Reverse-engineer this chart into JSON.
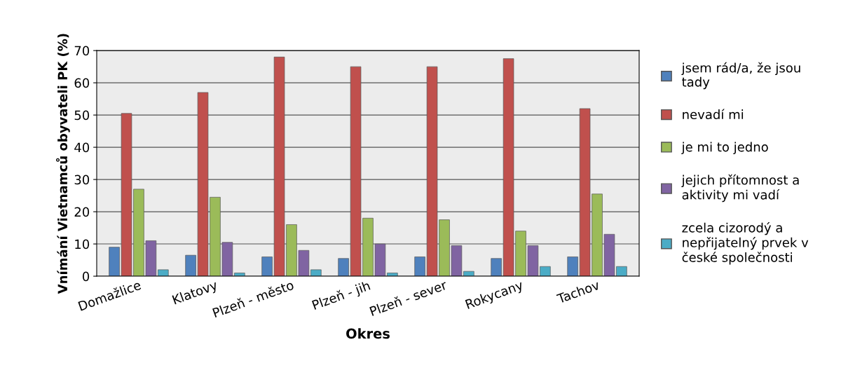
{
  "chart_data": {
    "type": "bar",
    "xlabel": "Okres",
    "ylabel": "Vnímání Vietnamců obyvateli PK (%)",
    "categories": [
      "Domažlice",
      "Klatovy",
      "Plzeň - město",
      "Plzeň - jih",
      "Plzeň - sever",
      "Rokycany",
      "Tachov"
    ],
    "series": [
      {
        "name": "jsem rád/a, že jsou tady",
        "color": "#4f81bd",
        "values": [
          9,
          6.5,
          6,
          5.5,
          6,
          5.5,
          6
        ]
      },
      {
        "name": "nevadí mi",
        "color": "#c0504d",
        "values": [
          50.5,
          57,
          68,
          65,
          65,
          67.5,
          52
        ]
      },
      {
        "name": "je mi to jedno",
        "color": "#9bbb59",
        "values": [
          27,
          24.5,
          16,
          18,
          17.5,
          14,
          25.5
        ]
      },
      {
        "name": "jejich přítomnost a aktivity mi vadí",
        "color": "#8064a2",
        "values": [
          11,
          10.5,
          8,
          10,
          9.5,
          9.5,
          13
        ]
      },
      {
        "name": "zcela cizorodý a nepřijatelný prvek v české společnosti",
        "color": "#4bacc6",
        "values": [
          2,
          1,
          2,
          1,
          1.5,
          3,
          3
        ]
      }
    ],
    "ylim": [
      0,
      70
    ],
    "yticks": [
      0,
      10,
      20,
      30,
      40,
      50,
      60,
      70
    ],
    "grid": "y",
    "legend": "right"
  }
}
